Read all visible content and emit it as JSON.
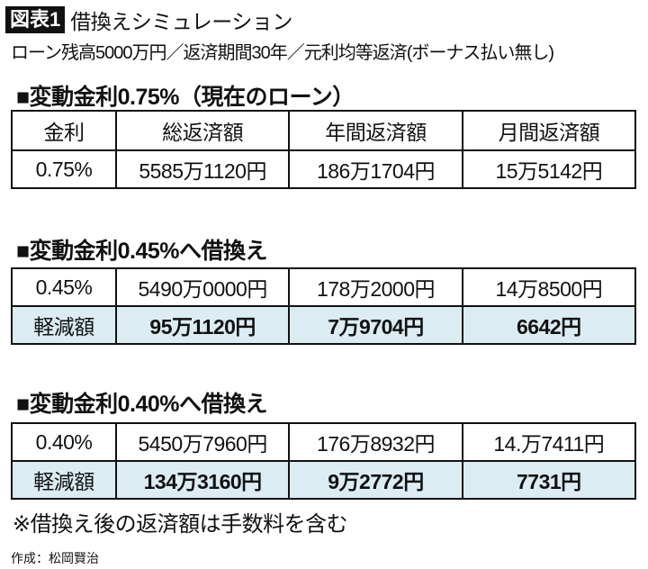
{
  "header": {
    "figure_label": "図表1",
    "title": "借換えシミュレーション",
    "subtitle": "ローン残高5000万円／返済期間30年／元利均等返済(ボーナス払い無し)"
  },
  "colors": {
    "highlight_row": "#dcecf3",
    "label_bg": "#111111"
  },
  "sections": [
    {
      "title": "■変動金利0.75%（現在のローン）",
      "headers": [
        "金利",
        "総返済額",
        "年間返済額",
        "月間返済額"
      ],
      "row": [
        "0.75%",
        "5585万1120円",
        "186万1704円",
        "15万5142円"
      ]
    },
    {
      "title": "■変動金利0.45%へ借換え",
      "row": [
        "0.45%",
        "5490万0000円",
        "178万2000円",
        "14万8500円"
      ],
      "reduction": [
        "軽減額",
        "95万1120円",
        "7万9704円",
        "6642円"
      ]
    },
    {
      "title": "■変動金利0.40%へ借換え",
      "row": [
        "0.40%",
        "5450万7960円",
        "176万8932円",
        "14.万7411円"
      ],
      "reduction": [
        "軽減額",
        "134万3160円",
        "9万2772円",
        "7731円"
      ]
    }
  ],
  "footnote": "※借換え後の返済額は手数料を含む",
  "credit": "作成：松岡賢治"
}
